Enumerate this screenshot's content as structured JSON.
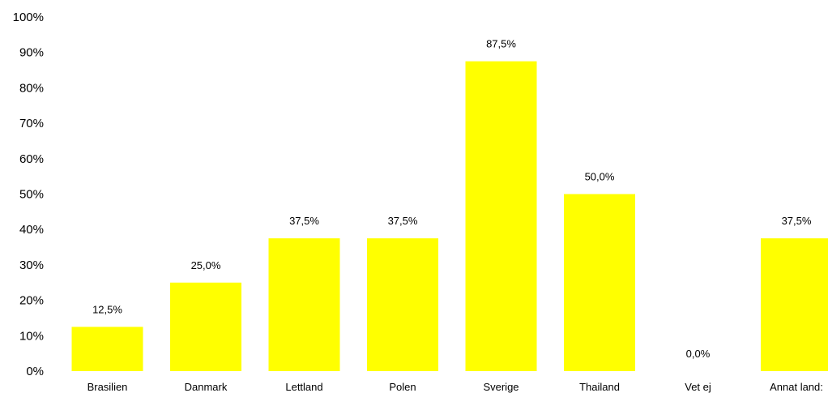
{
  "chart_data": {
    "type": "bar",
    "categories": [
      "Brasilien",
      "Danmark",
      "Lettland",
      "Polen",
      "Sverige",
      "Thailand",
      "Vet ej",
      "Annat land:"
    ],
    "values": [
      12.5,
      25.0,
      37.5,
      37.5,
      87.5,
      50.0,
      0.0,
      37.5
    ],
    "value_labels": [
      "12,5%",
      "25,0%",
      "37,5%",
      "37,5%",
      "87,5%",
      "50,0%",
      "0,0%",
      "37,5%"
    ],
    "ylim": [
      0,
      100
    ],
    "yticks": [
      0,
      10,
      20,
      30,
      40,
      50,
      60,
      70,
      80,
      90,
      100
    ],
    "ytick_labels": [
      "0%",
      "10%",
      "20%",
      "30%",
      "40%",
      "50%",
      "60%",
      "70%",
      "80%",
      "90%",
      "100%"
    ],
    "grid": false,
    "legend": "none",
    "bar_color": "#ffff00"
  }
}
